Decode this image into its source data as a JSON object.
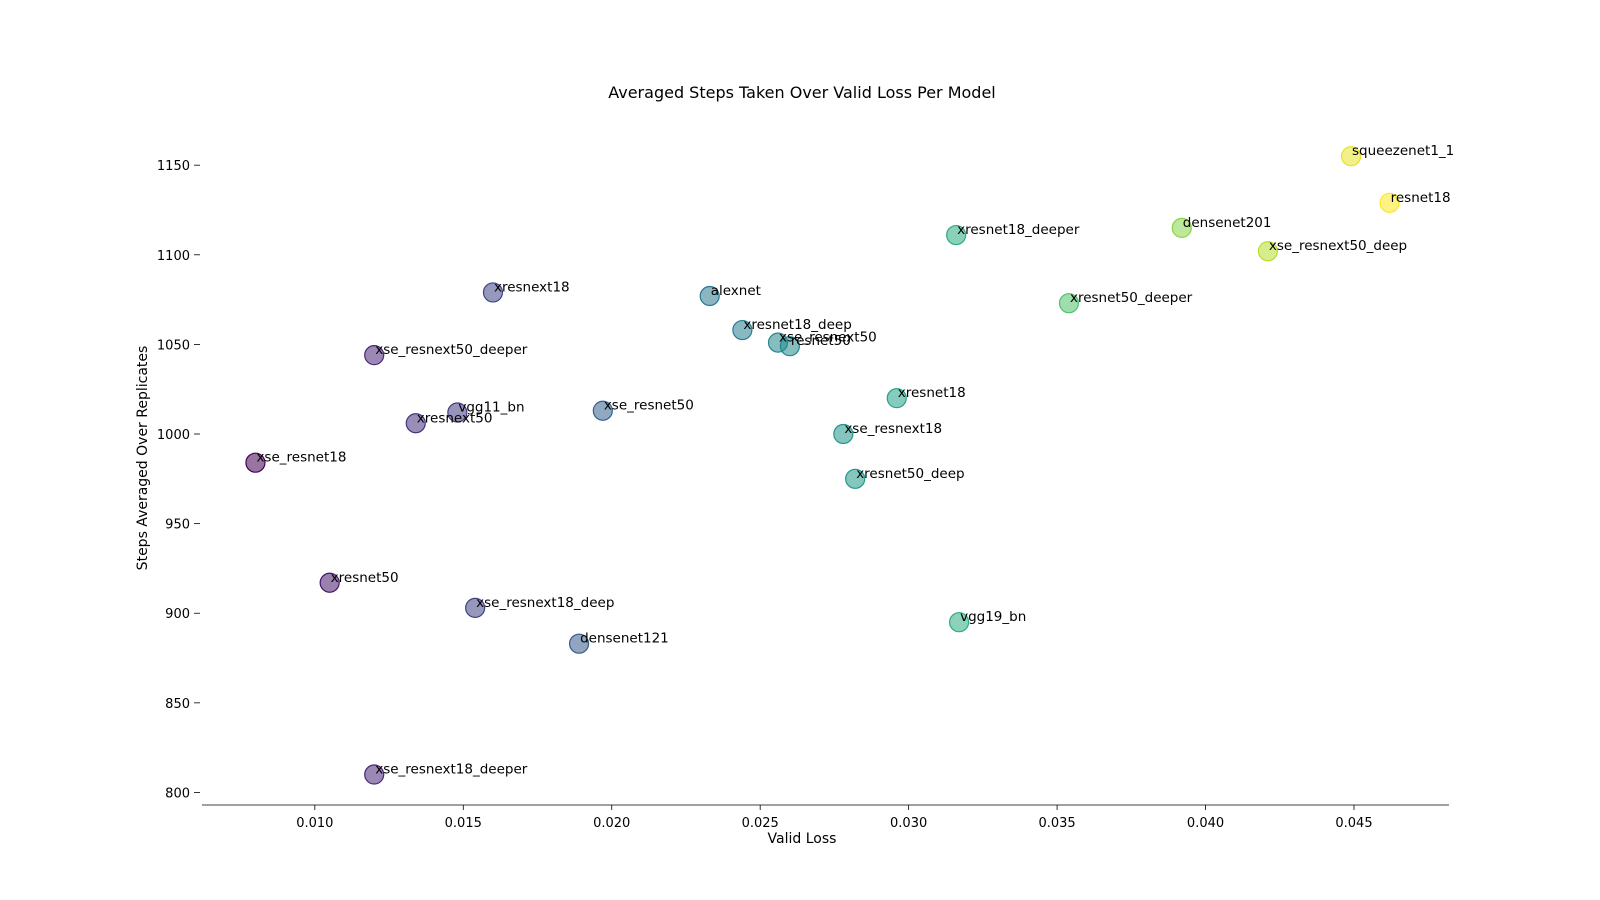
{
  "chart_data": {
    "type": "scatter",
    "title": "Averaged Steps Taken Over Valid Loss Per Model",
    "xlabel": "Valid Loss",
    "ylabel": "Steps Averaged Over Replicates",
    "xlim": [
      0.0062,
      0.0482
    ],
    "ylim": [
      793,
      1178
    ],
    "x_ticks": [
      0.01,
      0.015,
      0.02,
      0.025,
      0.03,
      0.035,
      0.04,
      0.045
    ],
    "x_tick_labels": [
      "0.010",
      "0.015",
      "0.020",
      "0.025",
      "0.030",
      "0.035",
      "0.040",
      "0.045"
    ],
    "y_ticks": [
      800,
      850,
      900,
      950,
      1000,
      1050,
      1100,
      1150
    ],
    "y_tick_labels": [
      "800",
      "850",
      "900",
      "950",
      "1000",
      "1050",
      "1100",
      "1150"
    ],
    "colormap": "viridis",
    "color_value": "x",
    "grid": false,
    "points": [
      {
        "label": "squeezenet1_1",
        "x": 0.0449,
        "y": 1155
      },
      {
        "label": "resnet18",
        "x": 0.0462,
        "y": 1129
      },
      {
        "label": "densenet201",
        "x": 0.0392,
        "y": 1115
      },
      {
        "label": "xse_resnext50_deep",
        "x": 0.0421,
        "y": 1102
      },
      {
        "label": "xresnet18_deeper",
        "x": 0.0316,
        "y": 1111
      },
      {
        "label": "xresnet50_deeper",
        "x": 0.0354,
        "y": 1073
      },
      {
        "label": "xresnext18",
        "x": 0.016,
        "y": 1079
      },
      {
        "label": "alexnet",
        "x": 0.0233,
        "y": 1077
      },
      {
        "label": "xresnet18_deep",
        "x": 0.0244,
        "y": 1058
      },
      {
        "label": "xse_resnext50",
        "x": 0.0256,
        "y": 1051
      },
      {
        "label": "resnet50",
        "x": 0.026,
        "y": 1049
      },
      {
        "label": "xse_resnext50_deeper",
        "x": 0.012,
        "y": 1044
      },
      {
        "label": "vgg11_bn",
        "x": 0.0148,
        "y": 1012
      },
      {
        "label": "xse_resnet50",
        "x": 0.0197,
        "y": 1013
      },
      {
        "label": "xresnext50",
        "x": 0.0134,
        "y": 1006
      },
      {
        "label": "xresnet18",
        "x": 0.0296,
        "y": 1020
      },
      {
        "label": "xse_resnext18",
        "x": 0.0278,
        "y": 1000
      },
      {
        "label": "xse_resnet18",
        "x": 0.008,
        "y": 984
      },
      {
        "label": "xresnet50_deep",
        "x": 0.0282,
        "y": 975
      },
      {
        "label": "xresnet50",
        "x": 0.0105,
        "y": 917
      },
      {
        "label": "xse_resnext18_deep",
        "x": 0.0154,
        "y": 903
      },
      {
        "label": "densenet121",
        "x": 0.0189,
        "y": 883
      },
      {
        "label": "vgg19_bn",
        "x": 0.0317,
        "y": 895
      },
      {
        "label": "xse_resnext18_deeper",
        "x": 0.012,
        "y": 810
      }
    ]
  }
}
